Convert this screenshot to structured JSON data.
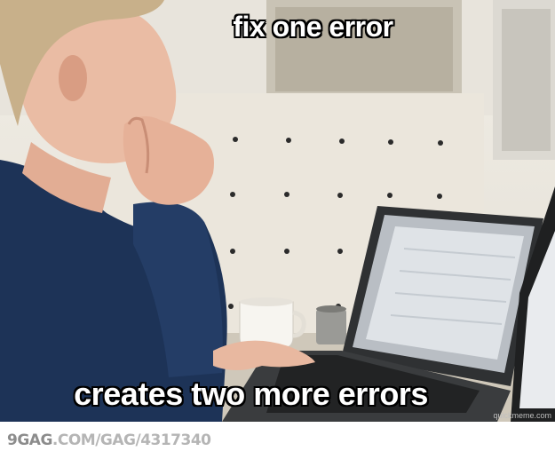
{
  "meme": {
    "top_text": "fix one error",
    "bottom_text": "creates two more errors",
    "watermark": "quickmeme.com"
  },
  "footer": {
    "brand": "9GAG",
    "path": ".COM/GAG/4317340"
  }
}
